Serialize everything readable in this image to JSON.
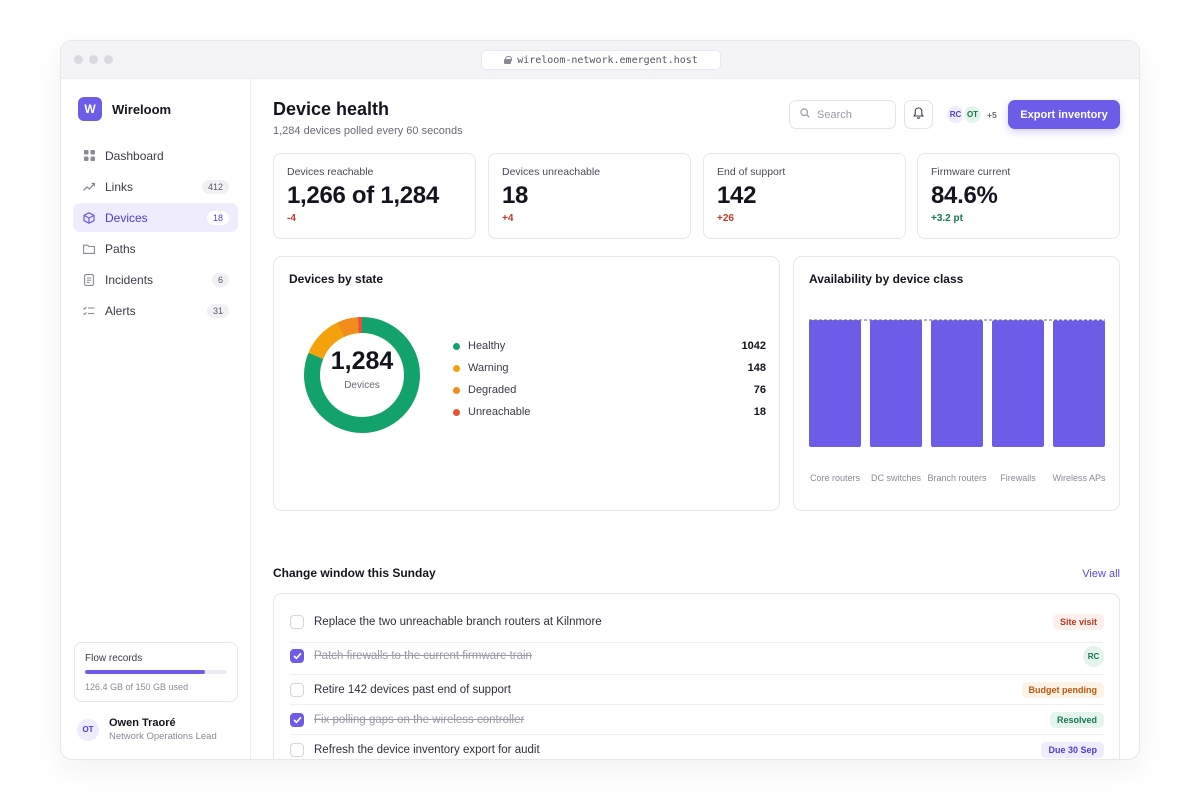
{
  "browser": {
    "url": "wireloom-network.emergent.host"
  },
  "brand": {
    "logo_letter": "W",
    "name": "Wireloom"
  },
  "nav": [
    {
      "label": "Dashboard",
      "badge": "",
      "icon": "grid-icon"
    },
    {
      "label": "Links",
      "badge": "412",
      "icon": "trend-icon"
    },
    {
      "label": "Devices",
      "badge": "18",
      "icon": "cube-icon",
      "active": true
    },
    {
      "label": "Paths",
      "badge": "",
      "icon": "folder-icon"
    },
    {
      "label": "Incidents",
      "badge": "6",
      "icon": "document-icon"
    },
    {
      "label": "Alerts",
      "badge": "31",
      "icon": "checklist-icon"
    }
  ],
  "storage": {
    "title": "Flow records",
    "subtitle": "126.4 GB of 150 GB used",
    "used": 126.4,
    "total": 150
  },
  "user": {
    "initials": "OT",
    "name": "Owen Traoré",
    "role": "Network Operations Lead"
  },
  "header": {
    "title": "Device health",
    "subtitle": "1,284 devices polled every 60 seconds",
    "search_placeholder": "Search",
    "avatars": [
      "RC",
      "OT"
    ],
    "avatars_more": "+5",
    "export_label": "Export inventory"
  },
  "stats": [
    {
      "label": "Devices reachable",
      "value": "1,266 of 1,284",
      "delta": "-4",
      "delta_color": "#c0392b"
    },
    {
      "label": "Devices unreachable",
      "value": "18",
      "delta": "+4",
      "delta_color": "#c0392b"
    },
    {
      "label": "End of support",
      "value": "142",
      "delta": "+26",
      "delta_color": "#c0392b"
    },
    {
      "label": "Firmware current",
      "value": "84.6%",
      "delta": "+3.2 pt",
      "delta_color": "#137a4e"
    }
  ],
  "state_card": {
    "title": "Devices by state",
    "center_value": "1,284",
    "center_label": "Devices"
  },
  "availability_card": {
    "title": "Availability by device class"
  },
  "chart_data": [
    {
      "type": "pie",
      "title": "Devices by state",
      "categories": [
        "Healthy",
        "Warning",
        "Degraded",
        "Unreachable"
      ],
      "values": [
        1042,
        148,
        76,
        18
      ],
      "colors": [
        "#13a26b",
        "#f5a10b",
        "#f28c1a",
        "#e8513a"
      ],
      "legend": "right"
    },
    {
      "type": "bar",
      "title": "Availability by device class",
      "categories": [
        "Core routers",
        "DC switches",
        "Branch routers",
        "Firewalls",
        "Wireless APs"
      ],
      "values": [
        99.9,
        99.9,
        99.8,
        99.8,
        99.6
      ],
      "ylim": [
        0,
        100
      ],
      "target_line": 100,
      "color": "#6c5ce7"
    }
  ],
  "changes": {
    "title": "Change window this Sunday",
    "view_all": "View all",
    "tasks": [
      {
        "text": "Replace the two unreachable branch routers at Kilnmore",
        "done": false,
        "tag": "Site visit",
        "tag_fg": "#b03a25",
        "tag_bg": "#fdf0ec"
      },
      {
        "text": "Patch firewalls to the current firmware train",
        "done": true,
        "tag": "RC",
        "tag_type": "avatar"
      },
      {
        "text": "Retire 142 devices past end of support",
        "done": false,
        "tag": "Budget pending",
        "tag_fg": "#b95a10",
        "tag_bg": "#fdf2e6"
      },
      {
        "text": "Fix polling gaps on the wireless controller",
        "done": true,
        "tag": "Resolved",
        "tag_fg": "#137a4e",
        "tag_bg": "#e5f5ed"
      },
      {
        "text": "Refresh the device inventory export for audit",
        "done": false,
        "tag": "Due 30 Sep",
        "tag_fg": "#4c3fd1",
        "tag_bg": "#eeecfd"
      }
    ]
  }
}
